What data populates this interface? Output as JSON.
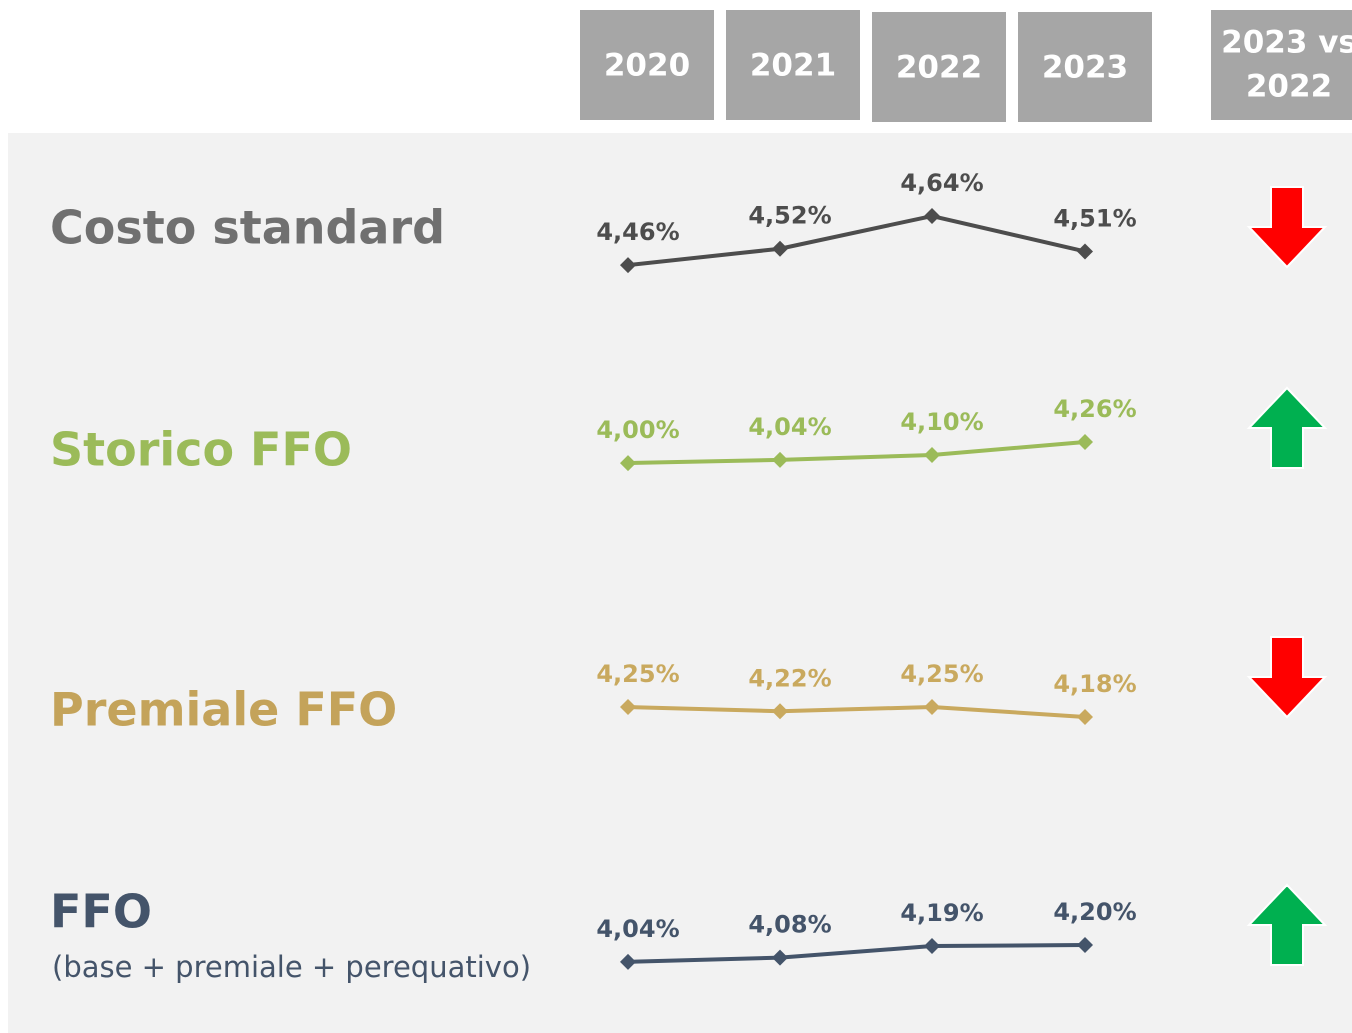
{
  "header": {
    "years": [
      "2020",
      "2021",
      "2022",
      "2023"
    ],
    "comparison": [
      "2023 vs",
      "2022"
    ]
  },
  "chart_data": [
    {
      "type": "line",
      "title": "Costo standard",
      "color": "#4d4d4d",
      "title_color": "#707070",
      "values": [
        4.46,
        4.52,
        4.64,
        4.51
      ],
      "value_labels": [
        "4,46%",
        "4,52%",
        "4,64%",
        "4,51%"
      ],
      "ylim": [
        4.42,
        4.64
      ],
      "trend": "down",
      "trend_color": "#ff0000"
    },
    {
      "type": "line",
      "title": "Storico FFO",
      "color": "#9bbb59",
      "title_color": "#9bbb59",
      "values": [
        4.0,
        4.04,
        4.1,
        4.26
      ],
      "value_labels": [
        "4,00%",
        "4,04%",
        "4,10%",
        "4,26%"
      ],
      "ylim": [
        3.52,
        4.26
      ],
      "trend": "up",
      "trend_color": "#00b050"
    },
    {
      "type": "line",
      "title": "Premiale FFO",
      "color": "#c9a95e",
      "title_color": "#c4a35a",
      "values": [
        4.25,
        4.22,
        4.25,
        4.18
      ],
      "value_labels": [
        "4,25%",
        "4,22%",
        "4,25%",
        "4,18%"
      ],
      "ylim": [
        3.83,
        4.25
      ],
      "trend": "down",
      "trend_color": "#ff0000"
    },
    {
      "type": "line",
      "title": "FFO",
      "subtitle": "(base + premiale + perequativo)",
      "color": "#44546a",
      "title_color": "#44546a",
      "values": [
        4.04,
        4.08,
        4.19,
        4.2
      ],
      "value_labels": [
        "4,04%",
        "4,08%",
        "4,19%",
        "4,20%"
      ],
      "ylim": [
        3.63,
        4.2
      ],
      "trend": "up",
      "trend_color": "#00b050"
    }
  ]
}
